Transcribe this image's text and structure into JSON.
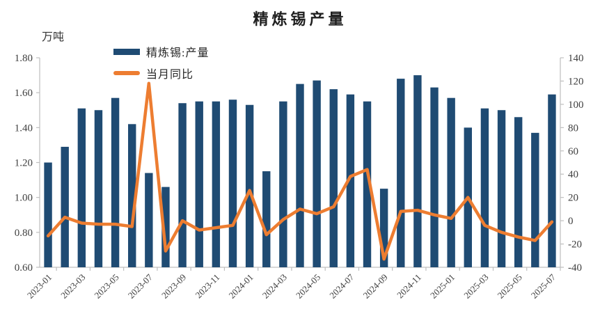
{
  "chart_data": {
    "type": "combo",
    "title": "精炼锡产量",
    "unit_label": "万吨",
    "legend": [
      {
        "label": "精炼锡:产量",
        "marker": "bar-swatch",
        "color": "#1F4B73"
      },
      {
        "label": "当月同比",
        "marker": "line-swatch",
        "color": "#ED7D31"
      }
    ],
    "categories": [
      "2023-01",
      "2023-02",
      "2023-03",
      "2023-04",
      "2023-05",
      "2023-06",
      "2023-07",
      "2023-08",
      "2023-09",
      "2023-10",
      "2023-11",
      "2023-12",
      "2024-01",
      "2024-02",
      "2024-03",
      "2024-04",
      "2024-05",
      "2024-06",
      "2024-07",
      "2024-08",
      "2024-09",
      "2024-10",
      "2024-11",
      "2024-12",
      "2025-01",
      "2025-02",
      "2025-03",
      "2025-04",
      "2025-05",
      "2025-06",
      "2025-07"
    ],
    "x_axis": {
      "tick_labels": [
        "2023-01",
        "2023-03",
        "2023-05",
        "2023-07",
        "2023-09",
        "2023-11",
        "2024-01",
        "2024-03",
        "2024-05",
        "2024-07",
        "2024-09",
        "2024-11",
        "2025-01",
        "2025-03",
        "2025-05",
        "2025-07"
      ],
      "label_rotation_deg": -45
    },
    "left_axis": {
      "min": 0.6,
      "max": 1.8,
      "step": 0.2,
      "tick_labels": [
        "0.60",
        "0.80",
        "1.00",
        "1.20",
        "1.40",
        "1.60",
        "1.80"
      ]
    },
    "right_axis": {
      "min": -40,
      "max": 140,
      "step": 20,
      "tick_labels": [
        "-40",
        "-20",
        "0",
        "20",
        "40",
        "60",
        "80",
        "100",
        "120",
        "140"
      ]
    },
    "series": [
      {
        "name": "精炼锡:产量",
        "type": "bar",
        "axis": "left",
        "color": "#1F4B73",
        "values": [
          1.2,
          1.29,
          1.51,
          1.5,
          1.57,
          1.42,
          1.14,
          1.06,
          1.54,
          1.55,
          1.55,
          1.56,
          1.53,
          1.15,
          1.55,
          1.65,
          1.67,
          1.62,
          1.59,
          1.55,
          1.05,
          1.68,
          1.7,
          1.63,
          1.57,
          1.4,
          1.51,
          1.5,
          1.46,
          1.37,
          1.59
        ]
      },
      {
        "name": "当月同比",
        "type": "line",
        "axis": "right",
        "color": "#ED7D31",
        "values": [
          -13,
          3,
          -2,
          -3,
          -3,
          -5,
          118,
          -26,
          0,
          -8,
          -6,
          -4,
          26,
          -12,
          1,
          10,
          6,
          12,
          38,
          44,
          -33,
          8,
          9,
          5,
          2,
          20,
          -4,
          -10,
          -14,
          -17,
          -1
        ]
      }
    ],
    "colors": {
      "axis_line": "#BFBFBF",
      "tick_text": "#404040",
      "background": "#FFFFFF"
    }
  }
}
